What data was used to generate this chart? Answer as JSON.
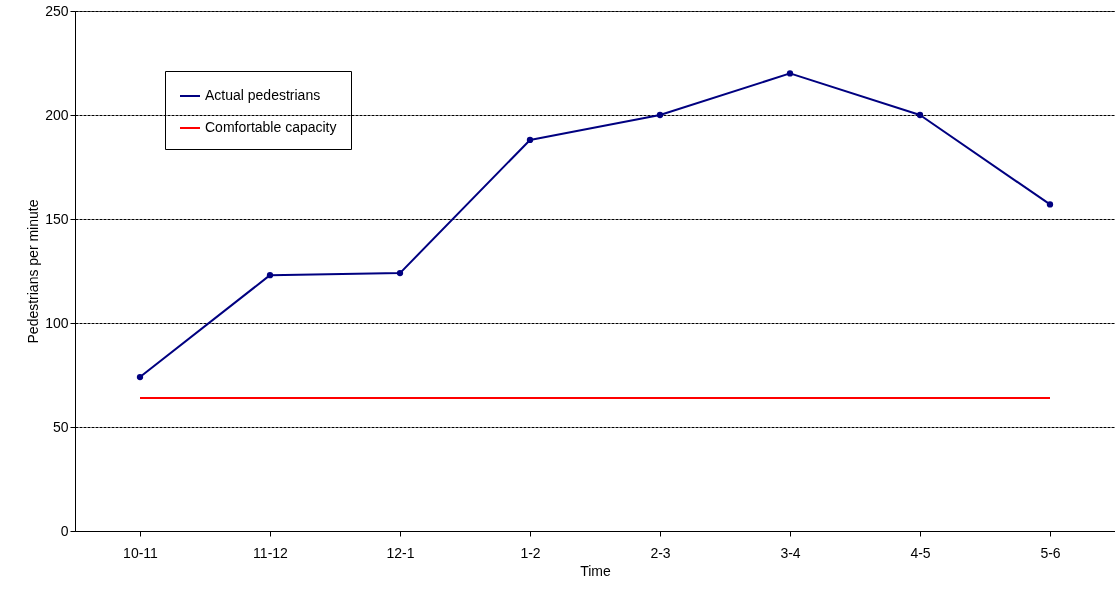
{
  "chart_data": {
    "type": "line",
    "xlabel": "Time",
    "ylabel": "Pedestrians per minute",
    "categories": [
      "10-11",
      "11-12",
      "12-1",
      "1-2",
      "2-3",
      "3-4",
      "4-5",
      "5-6"
    ],
    "series": [
      {
        "name": "Actual pedestrians",
        "color": "#000080",
        "values": [
          74,
          123,
          124,
          188,
          200,
          220,
          200,
          157
        ],
        "marker": "circle"
      },
      {
        "name": "Comfortable capacity",
        "color": "#ff0000",
        "values": [
          64,
          64,
          64,
          64,
          64,
          64,
          64,
          64
        ],
        "marker": "none"
      }
    ],
    "ylim": [
      0,
      250
    ],
    "yticks": [
      0,
      50,
      100,
      150,
      200,
      250
    ],
    "grid": "y",
    "legend": "top left",
    "line_style": "solid"
  }
}
